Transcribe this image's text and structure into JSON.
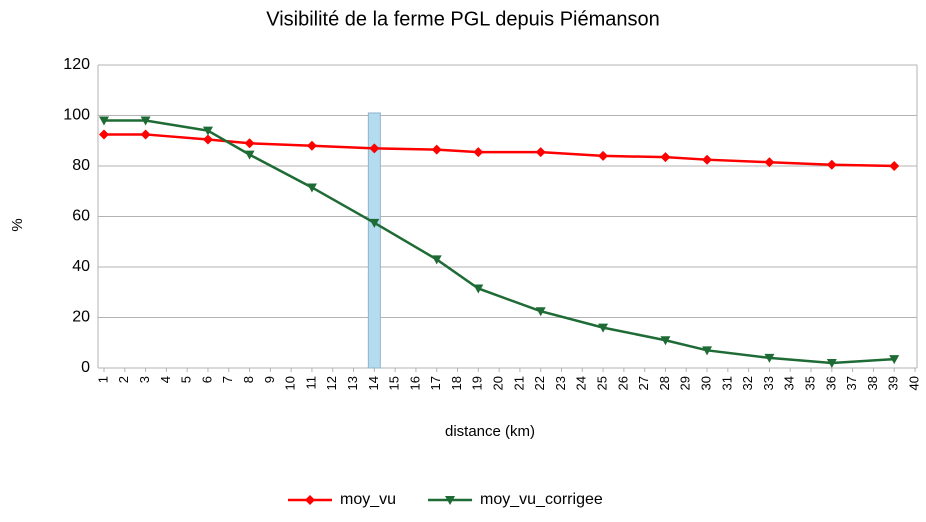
{
  "chart_data": {
    "type": "line",
    "title": "Visibilité de la ferme PGL depuis Piémanson",
    "x_label": "distance (km)",
    "y_label": "%",
    "x": [
      1,
      3,
      6,
      8,
      11,
      14,
      17,
      19,
      22,
      25,
      28,
      30,
      33,
      36,
      39
    ],
    "series": [
      {
        "name": "moy_vu",
        "color": "#ff0000",
        "marker": "diamond",
        "values": [
          92.5,
          92.5,
          90.5,
          89,
          88,
          87,
          86.5,
          85.5,
          85.5,
          84,
          83.5,
          82.5,
          81.5,
          80.5,
          80
        ]
      },
      {
        "name": "moy_vu_corrigee",
        "color": "#1e6b35",
        "marker": "triangle-down",
        "values": [
          98,
          98,
          94,
          84.5,
          71.5,
          57.5,
          43,
          31.5,
          22.5,
          16,
          11,
          7,
          4,
          2,
          3.5
        ]
      }
    ],
    "highlight_x": 14,
    "xlim": [
      1,
      40
    ],
    "xticks": [
      1,
      2,
      3,
      4,
      5,
      6,
      7,
      8,
      9,
      10,
      11,
      12,
      13,
      14,
      15,
      16,
      17,
      18,
      19,
      20,
      21,
      22,
      23,
      24,
      25,
      26,
      27,
      28,
      29,
      30,
      31,
      32,
      33,
      34,
      35,
      36,
      37,
      38,
      39,
      40
    ],
    "ylim": [
      0,
      120
    ],
    "yticks": [
      0,
      20,
      40,
      60,
      80,
      100,
      120
    ],
    "grid": true,
    "legend": "bottom"
  }
}
